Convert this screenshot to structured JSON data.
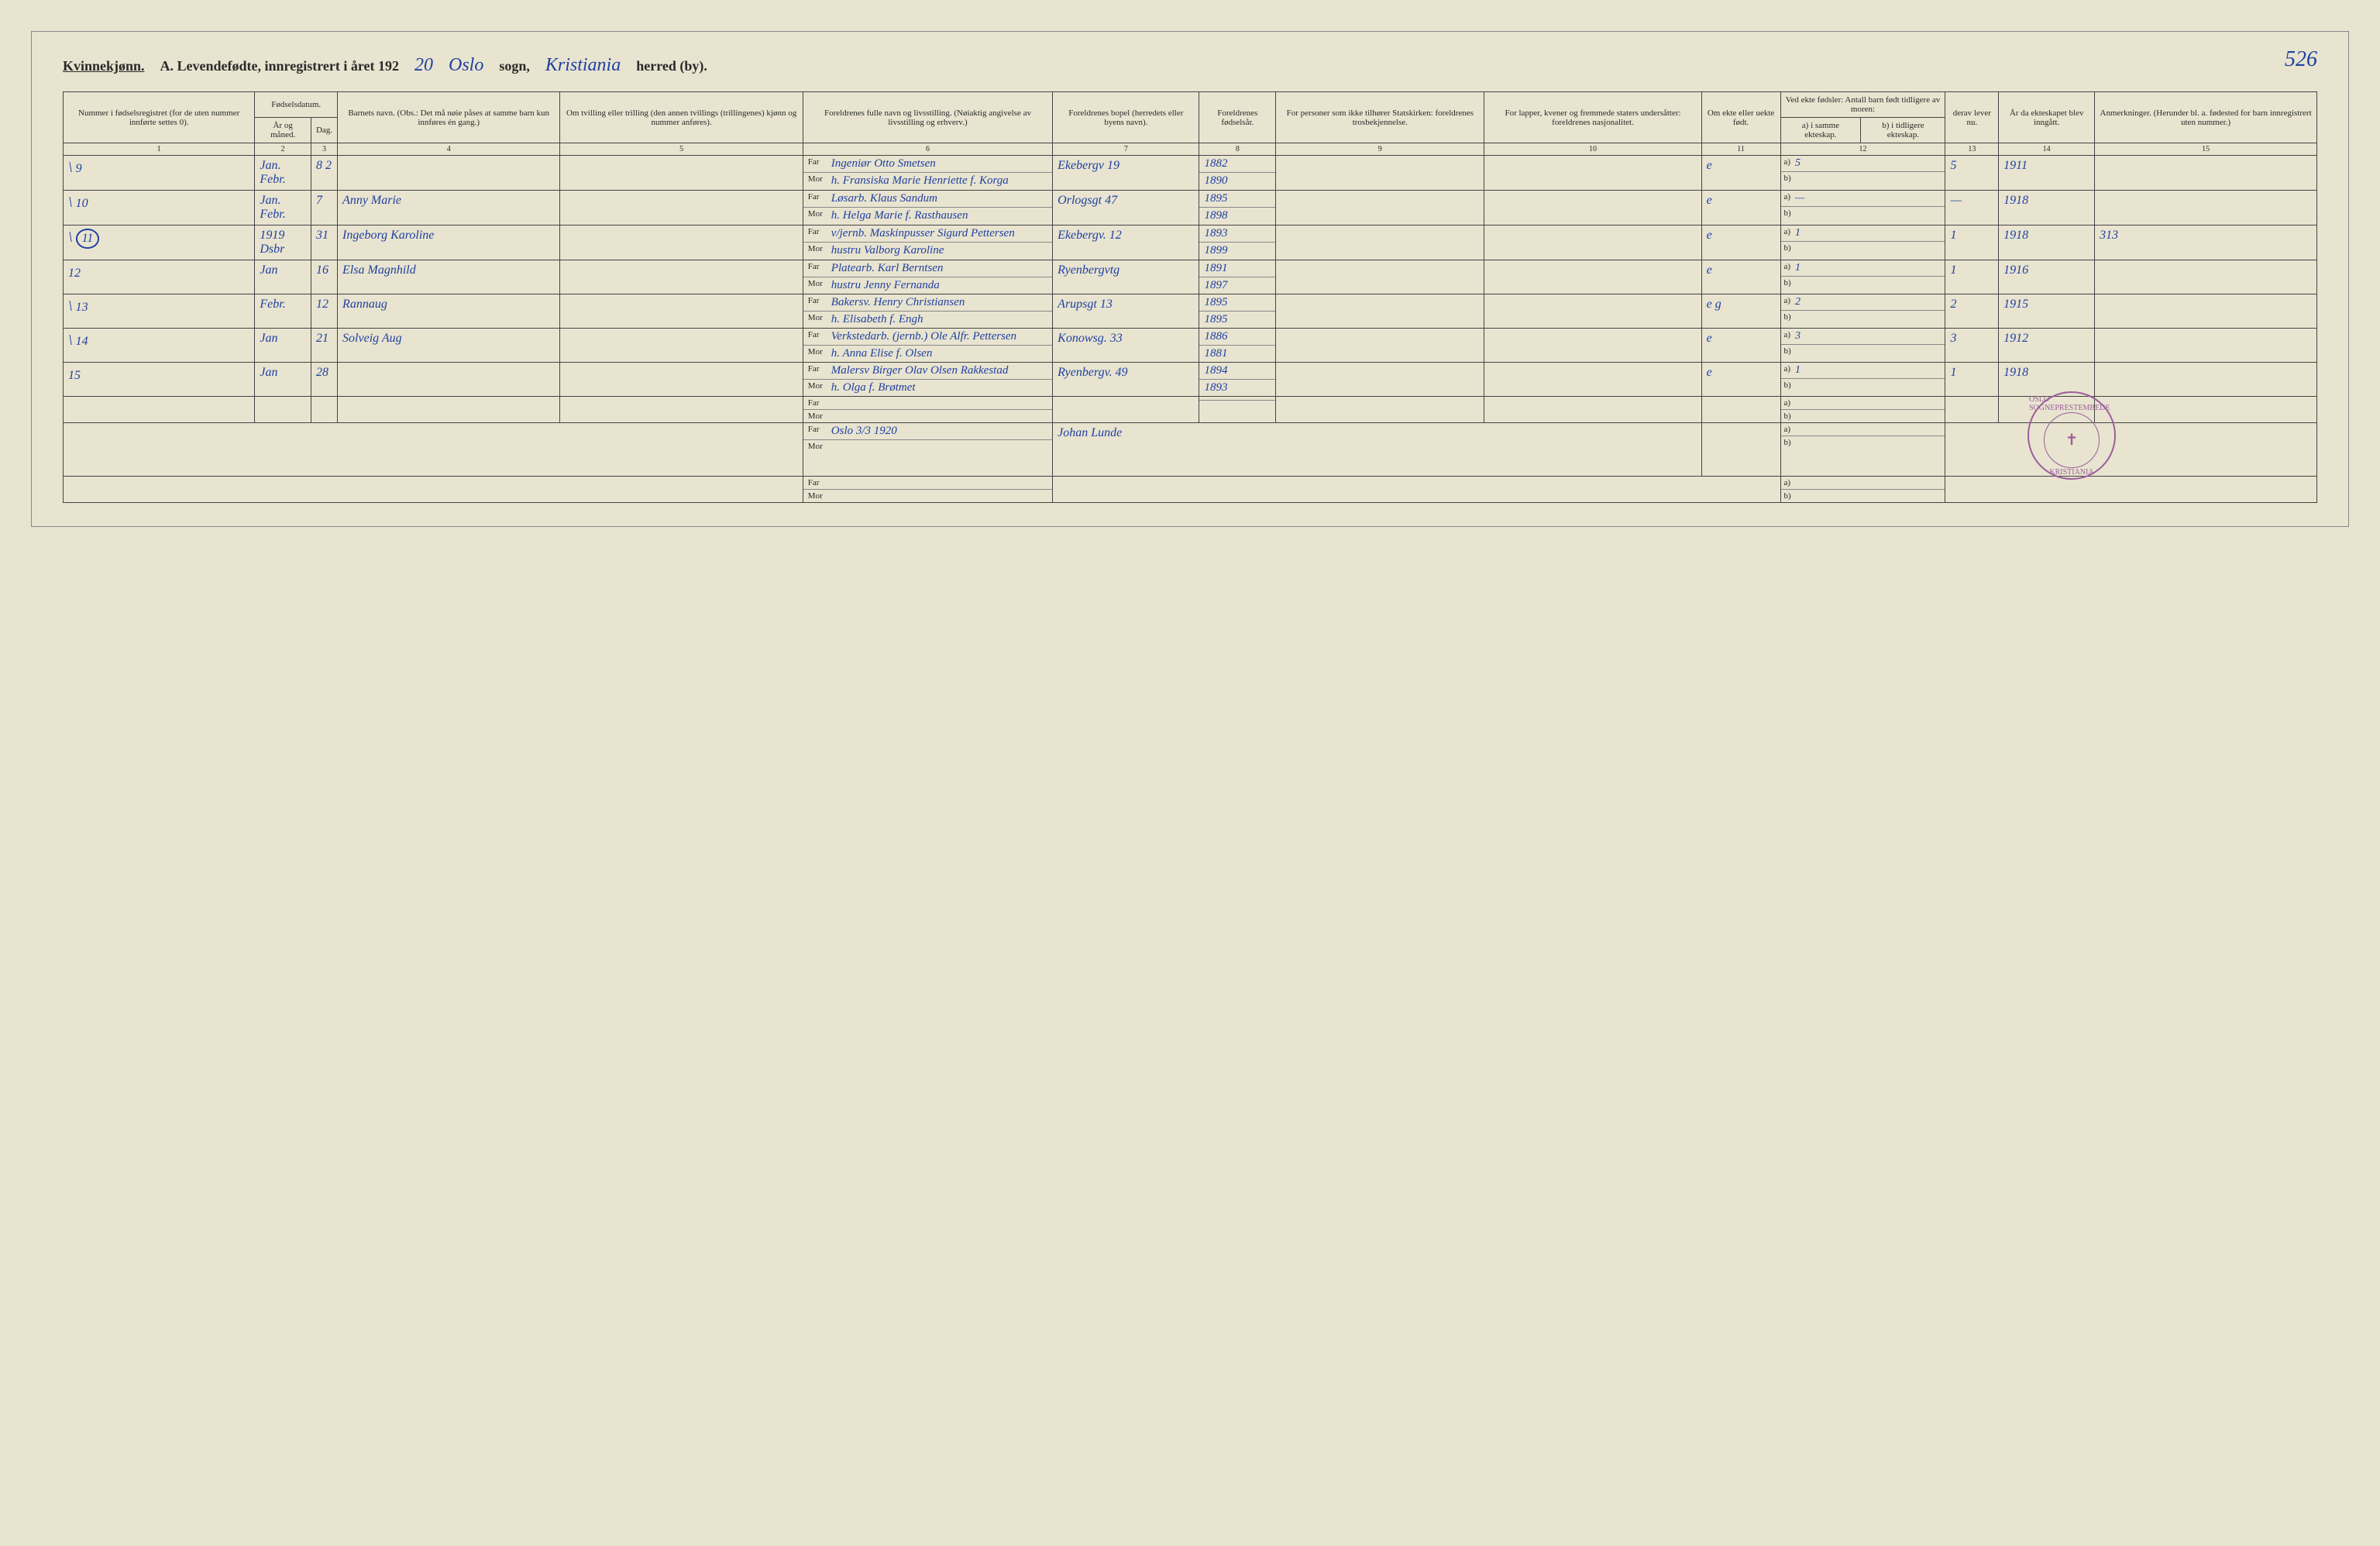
{
  "header": {
    "gender_label": "Kvinnekjønn.",
    "title_prefix": "A. Levendefødte, innregistrert i året 192",
    "year_suffix": "20",
    "sogn_label": "sogn,",
    "sogn_value": "Oslo",
    "herred_label": "herred (by).",
    "herred_value": "Kristiania",
    "page_number": "526"
  },
  "columns": {
    "c1": "Nummer i fødselsregistret (for de uten nummer innførte settes 0).",
    "c2_top": "Fødselsdatum.",
    "c2a": "År og måned.",
    "c2b": "Dag.",
    "c4": "Barnets navn. (Obs.: Det må nøie påses at samme barn kun innføres én gang.)",
    "c5": "Om tvilling eller trilling (den annen tvillings (trillingenes) kjønn og nummer anføres).",
    "c6": "Foreldrenes fulle navn og livsstilling. (Nøiaktig angivelse av livsstilling og erhverv.)",
    "c6_far": "Far",
    "c6_mor": "Mor",
    "c7": "Foreldrenes bopel (herredets eller byens navn).",
    "c8": "Foreldrenes fødselsår.",
    "c9": "For personer som ikke tilhører Statskirken: foreldrenes trosbekjennelse.",
    "c10": "For lapper, kvener og fremmede staters undersåtter: foreldrenes nasjonalitet.",
    "c11": "Om ekte eller uekte født.",
    "c12_top": "Ved ekte fødsler: Antall barn født tidligere av moren:",
    "c12a": "a) i samme ekteskap.",
    "c12b": "b) i tidligere ekteskap.",
    "c13": "derav lever nu.",
    "c14": "År da ekteskapet blev inngått.",
    "c15": "Anmerkninger. (Herunder bl. a. fødested for barn innregistrert uten nummer.)"
  },
  "colnums": [
    "1",
    "2",
    "3",
    "4",
    "5",
    "6",
    "7",
    "8",
    "9",
    "10",
    "11",
    "12",
    "13",
    "14",
    "15"
  ],
  "rows": [
    {
      "num": "9",
      "tick": "\\",
      "month": "Jan. Febr.",
      "day": "8 2",
      "name": "",
      "twin": "",
      "far": "Ingeniør Otto Smetsen",
      "mor": "h. Fransiska Marie Henriette f. Korga",
      "bopel": "Ekebergv 19",
      "year_far": "1882",
      "year_mor": "1890",
      "rel": "",
      "nat": "",
      "ekte": "e",
      "a": "5",
      "b": "",
      "lever": "5",
      "marriage": "1911",
      "anm": ""
    },
    {
      "num": "10",
      "tick": "\\",
      "month": "Jan. Febr.",
      "day": "7",
      "name": "Anny Marie",
      "twin": "",
      "far": "Løsarb. Klaus Sandum",
      "mor": "h. Helga Marie f. Rasthausen",
      "bopel": "Orlogsgt 47",
      "year_far": "1895",
      "year_mor": "1898",
      "rel": "",
      "nat": "",
      "ekte": "e",
      "a": "—",
      "b": "",
      "lever": "—",
      "marriage": "1918",
      "anm": ""
    },
    {
      "num": "11",
      "tick": "\\",
      "circled": true,
      "month": "1919 Dsbr",
      "day": "31",
      "name": "Ingeborg Karoline",
      "twin": "",
      "far": "v/jernb. Maskinpusser Sigurd Pettersen",
      "mor": "hustru Valborg Karoline",
      "bopel": "Ekebergv. 12",
      "year_far": "1893",
      "year_mor": "1899",
      "rel": "",
      "nat": "",
      "ekte": "e",
      "a": "1",
      "b": "",
      "lever": "1",
      "marriage": "1918",
      "anm": "313"
    },
    {
      "num": "12",
      "tick": "",
      "month": "Jan",
      "day": "16",
      "name": "Elsa Magnhild",
      "twin": "",
      "far": "Platearb. Karl Berntsen",
      "mor": "hustru Jenny Fernanda",
      "bopel": "Ryenbergvtg",
      "year_far": "1891",
      "year_mor": "1897",
      "rel": "",
      "nat": "",
      "ekte": "e",
      "a": "1",
      "b": "",
      "lever": "1",
      "marriage": "1916",
      "anm": ""
    },
    {
      "num": "13",
      "tick": "\\",
      "month": "Febr.",
      "day": "12",
      "name": "Rannaug",
      "twin": "",
      "far": "Bakersv. Henry Christiansen",
      "mor": "h. Elisabeth f. Engh",
      "bopel": "Arupsgt 13",
      "year_far": "1895",
      "year_mor": "1895",
      "rel": "",
      "nat": "",
      "ekte": "e g",
      "a": "2",
      "b": "",
      "lever": "2",
      "marriage": "1915",
      "anm": ""
    },
    {
      "num": "14",
      "tick": "\\",
      "month": "Jan",
      "day": "21",
      "name": "Solveig Aug",
      "twin": "",
      "far": "Verkstedarb. (jernb.) Ole Alfr. Pettersen",
      "mor": "h. Anna Elise f. Olsen",
      "bopel": "Konowsg. 33",
      "year_far": "1886",
      "year_mor": "1881",
      "rel": "",
      "nat": "",
      "ekte": "e",
      "a": "3",
      "b": "",
      "lever": "3",
      "marriage": "1912",
      "anm": ""
    },
    {
      "num": "15",
      "tick": "",
      "month": "Jan",
      "day": "28",
      "name": "",
      "twin": "",
      "far": "Malersv Birger Olav Olsen Rakkestad",
      "mor": "h. Olga f. Brøtmet",
      "bopel": "Ryenbergv. 49",
      "year_far": "1894",
      "year_mor": "1893",
      "rel": "",
      "nat": "",
      "ekte": "e",
      "a": "1",
      "b": "",
      "lever": "1",
      "marriage": "1918",
      "anm": ""
    },
    {
      "num": "",
      "tick": "",
      "month": "",
      "day": "",
      "name": "",
      "twin": "",
      "far": "",
      "mor": "",
      "bopel": "",
      "year_far": "",
      "year_mor": "",
      "rel": "",
      "nat": "",
      "ekte": "",
      "a": "",
      "b": "",
      "lever": "",
      "marriage": "",
      "anm": ""
    }
  ],
  "signature": {
    "place_date": "Oslo 3/3 1920",
    "name": "Johan Lunde"
  },
  "stamp": {
    "outer_top": "OSLO SOGNEPRESTEMBEDE",
    "outer_bottom": "KRISTIANIA",
    "symbol": "✝"
  },
  "styling": {
    "page_bg": "#e8e4d0",
    "ink_color": "#2040a0",
    "print_color": "#2a2a2a",
    "border_color": "#444",
    "stamp_color": "#9b5e9b",
    "font_body": "Times New Roman",
    "font_handwriting": "cursive",
    "header_fontsize_pt": 18,
    "handwriting_fontsize_pt": 16,
    "table_fontsize_pt": 12,
    "thead_fontsize_pt": 11
  }
}
